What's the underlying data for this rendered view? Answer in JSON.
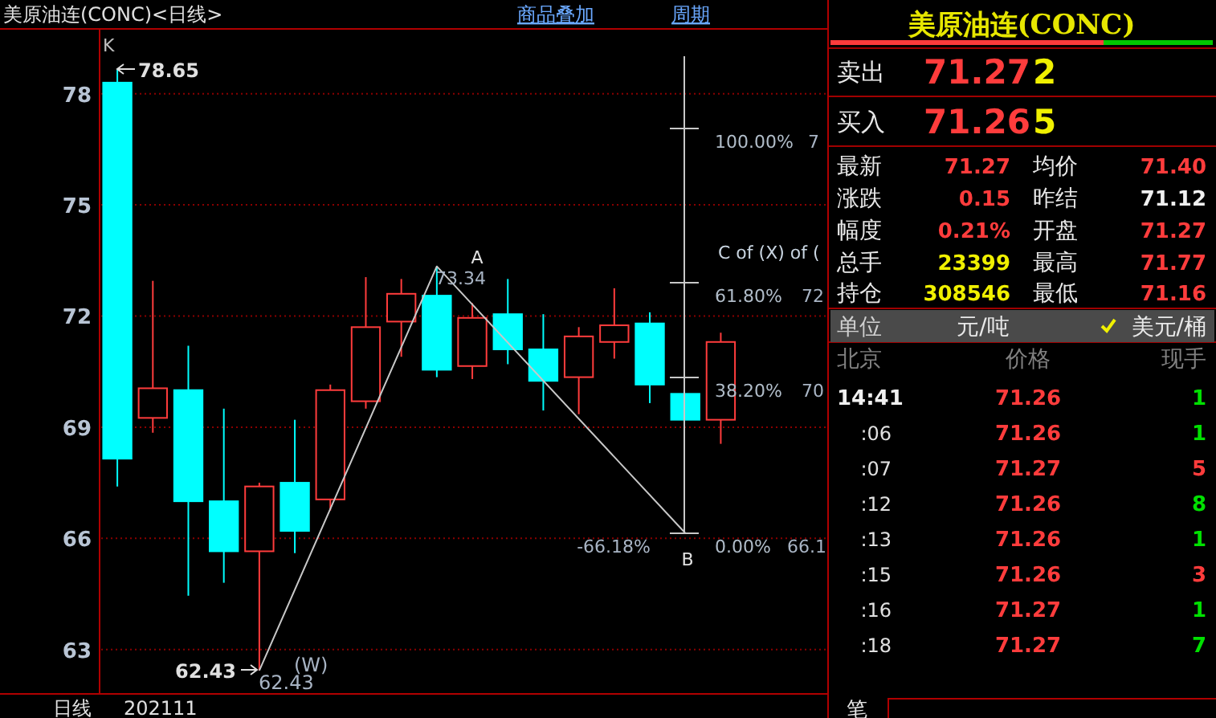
{
  "chart_data": [
    {
      "type": "candlestick",
      "title": "美原油连(CONC)<日线>",
      "xlabel": "日线",
      "categories": [
        null,
        null,
        null,
        null,
        null,
        null,
        null,
        null,
        null,
        null,
        null,
        null,
        null,
        null,
        null,
        null,
        null,
        null
      ],
      "ohlc": [
        [
          78.3,
          78.65,
          67.4,
          68.15
        ],
        [
          69.25,
          72.95,
          68.85,
          70.05
        ],
        [
          70.0,
          71.2,
          64.45,
          67.0
        ],
        [
          67.0,
          69.5,
          64.8,
          65.65
        ],
        [
          65.65,
          67.5,
          62.43,
          67.4
        ],
        [
          67.5,
          69.2,
          65.6,
          66.2
        ],
        [
          67.05,
          70.15,
          66.75,
          70.0
        ],
        [
          69.7,
          73.05,
          69.5,
          71.7
        ],
        [
          71.85,
          73.0,
          70.9,
          72.6
        ],
        [
          72.55,
          73.34,
          70.35,
          70.55
        ],
        [
          70.65,
          72.35,
          70.3,
          71.95
        ],
        [
          72.05,
          73.0,
          70.7,
          71.1
        ],
        [
          71.1,
          72.05,
          69.45,
          70.25
        ],
        [
          70.35,
          71.7,
          69.35,
          71.45
        ],
        [
          71.3,
          72.75,
          70.85,
          71.75
        ],
        [
          71.8,
          72.1,
          69.65,
          70.15
        ],
        [
          69.9,
          69.9,
          69.2,
          69.2
        ],
        [
          69.2,
          71.55,
          68.55,
          71.3
        ]
      ],
      "series": [
        {
          "type": "line",
          "color": "#c8c8c8",
          "values": [
            null,
            null,
            null,
            null,
            62.43,
            null,
            null,
            null,
            null,
            73.34,
            null,
            null,
            null,
            null,
            null,
            null,
            66.14,
            null
          ]
        }
      ],
      "ylim": [
        61.8,
        79.75
      ],
      "yticks": [
        63,
        66,
        69,
        72,
        75,
        78
      ],
      "grid": "y",
      "annotations": [
        "K",
        "78.65",
        "62.43",
        "62.43",
        "(W)",
        "A",
        "73.34",
        "B",
        "-66.18%",
        "C of (X) of (",
        "7",
        "72",
        "70",
        "66.1",
        "商品叠加",
        "周期",
        "100.00%",
        "61.80%",
        "38.20%",
        "0.00%",
        "202111"
      ]
    },
    {
      "type": "other",
      "title": "美原油连(CONC)",
      "annotations": [
        "卖出",
        "71.27",
        "2",
        "买入",
        "71.26",
        "5",
        "最新",
        "71.27",
        "均价",
        "71.40",
        "涨跌",
        "0.15",
        "昨结",
        "71.12",
        "幅度",
        "0.21%",
        "开盘",
        "71.27",
        "总手",
        "23399",
        "最高",
        "71.77",
        "持仓",
        "308546",
        "最低",
        "71.16",
        "单位",
        "元/吨",
        "美元/桶",
        "北京",
        "价格",
        "现手",
        "14:41",
        "71.26",
        "1",
        ":06",
        "71.26",
        "1",
        ":07",
        "71.27",
        "5",
        ":12",
        "71.26",
        "8",
        ":13",
        "71.26",
        "1",
        ":15",
        "71.26",
        "3",
        ":16",
        "71.27",
        "1",
        ":18",
        "71.27",
        "7",
        "笔"
      ]
    }
  ]
}
